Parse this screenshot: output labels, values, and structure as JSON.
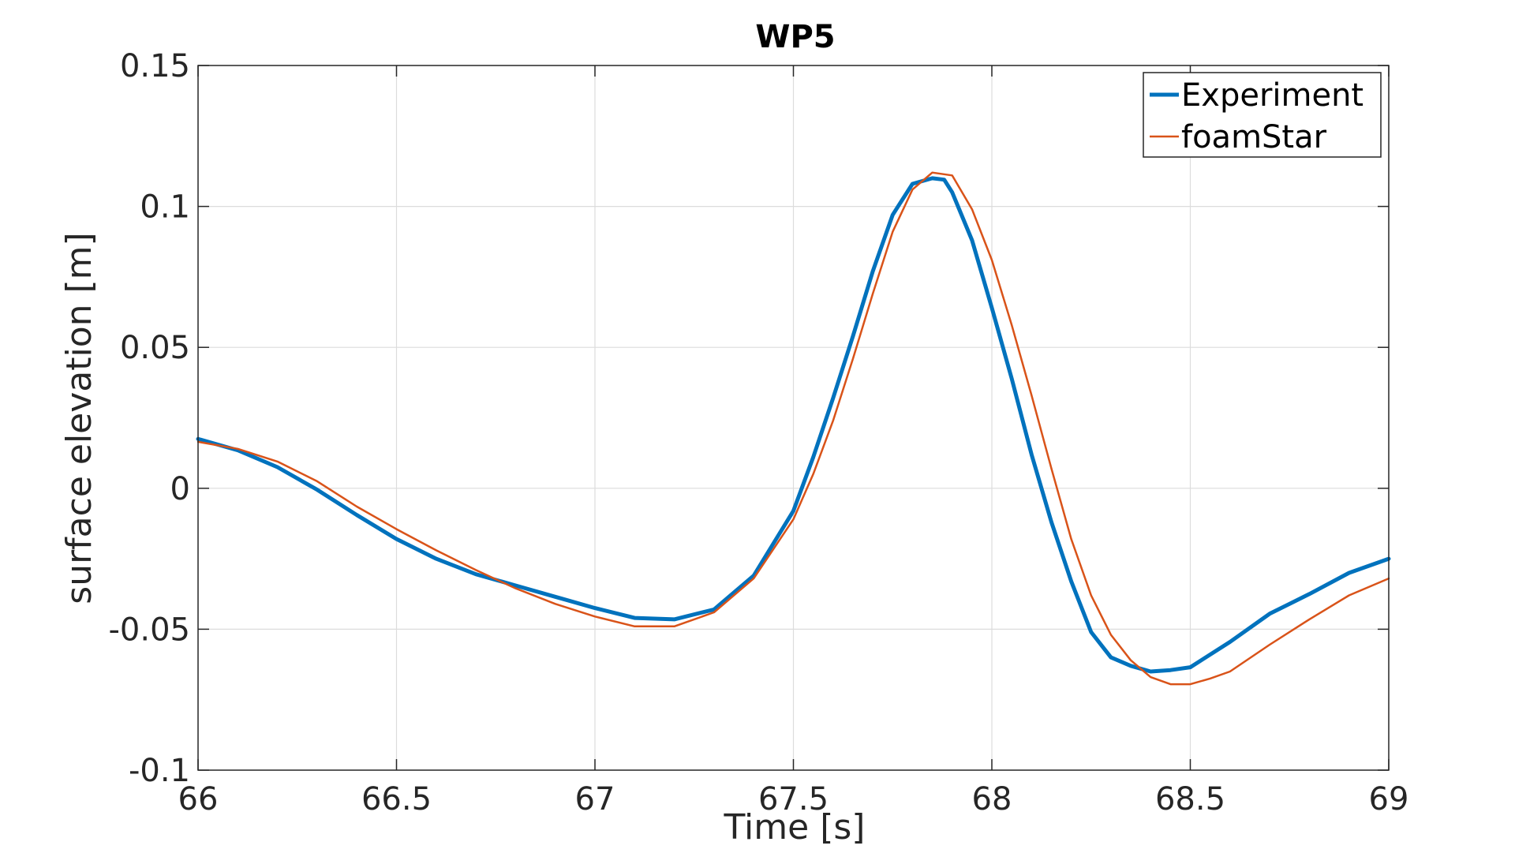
{
  "chart_data": {
    "type": "line",
    "title": "WP5",
    "xlabel": "Time [s]",
    "ylabel": "surface elevation [m]",
    "xlim": [
      66,
      69
    ],
    "ylim": [
      -0.1,
      0.15
    ],
    "xticks": [
      66,
      66.5,
      67,
      67.5,
      68,
      68.5,
      69
    ],
    "xtick_labels": [
      "66",
      "66.5",
      "67",
      "67.5",
      "68",
      "68.5",
      "69"
    ],
    "yticks": [
      -0.1,
      -0.05,
      0,
      0.05,
      0.1,
      0.15
    ],
    "ytick_labels": [
      "-0.1",
      "-0.05",
      "0",
      "0.05",
      "0.1",
      "0.15"
    ],
    "grid": true,
    "legend_position": "top-right",
    "series": [
      {
        "name": "Experiment",
        "color": "#0072BD",
        "x": [
          66.0,
          66.1,
          66.2,
          66.3,
          66.4,
          66.5,
          66.6,
          66.7,
          66.8,
          66.9,
          67.0,
          67.1,
          67.2,
          67.3,
          67.4,
          67.5,
          67.55,
          67.6,
          67.65,
          67.7,
          67.75,
          67.8,
          67.85,
          67.88,
          67.9,
          67.95,
          68.0,
          68.05,
          68.1,
          68.15,
          68.2,
          68.25,
          68.3,
          68.35,
          68.4,
          68.45,
          68.5,
          68.6,
          68.7,
          68.8,
          68.9,
          69.0
        ],
        "y": [
          0.0175,
          0.0135,
          0.0075,
          -0.0005,
          -0.0095,
          -0.018,
          -0.025,
          -0.0305,
          -0.0345,
          -0.0385,
          -0.0425,
          -0.046,
          -0.0465,
          -0.043,
          -0.031,
          -0.008,
          0.011,
          0.032,
          0.054,
          0.077,
          0.097,
          0.108,
          0.11,
          0.1095,
          0.105,
          0.088,
          0.064,
          0.039,
          0.012,
          -0.012,
          -0.033,
          -0.051,
          -0.06,
          -0.063,
          -0.065,
          -0.0645,
          -0.0635,
          -0.0545,
          -0.0445,
          -0.0375,
          -0.03,
          -0.025
        ]
      },
      {
        "name": "foamStar",
        "color": "#D95319",
        "x": [
          66.0,
          66.1,
          66.2,
          66.3,
          66.4,
          66.5,
          66.6,
          66.7,
          66.8,
          66.9,
          67.0,
          67.1,
          67.2,
          67.3,
          67.4,
          67.5,
          67.55,
          67.6,
          67.65,
          67.7,
          67.75,
          67.8,
          67.85,
          67.9,
          67.95,
          68.0,
          68.05,
          68.1,
          68.15,
          68.2,
          68.25,
          68.3,
          68.35,
          68.4,
          68.45,
          68.5,
          68.55,
          68.6,
          68.7,
          68.8,
          68.9,
          69.0
        ],
        "y": [
          0.0165,
          0.014,
          0.0095,
          0.0025,
          -0.0065,
          -0.0145,
          -0.022,
          -0.029,
          -0.0355,
          -0.041,
          -0.0455,
          -0.049,
          -0.049,
          -0.044,
          -0.032,
          -0.011,
          0.005,
          0.024,
          0.046,
          0.069,
          0.091,
          0.106,
          0.112,
          0.111,
          0.099,
          0.081,
          0.058,
          0.033,
          0.007,
          -0.018,
          -0.038,
          -0.052,
          -0.061,
          -0.067,
          -0.0695,
          -0.0695,
          -0.0675,
          -0.065,
          -0.0555,
          -0.0465,
          -0.038,
          -0.032
        ]
      }
    ]
  }
}
